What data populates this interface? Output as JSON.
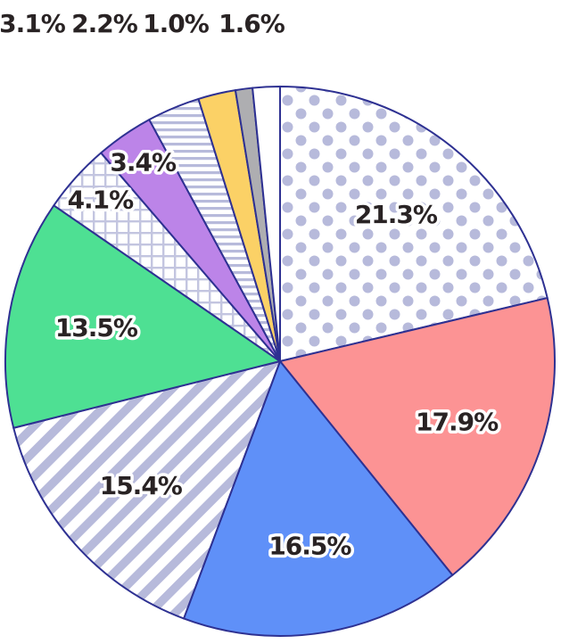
{
  "background_color": "#ffffff",
  "chart_data": {
    "type": "pie",
    "title": "",
    "direction": "clockwise",
    "start_angle_deg": 0,
    "legend_position": "none",
    "outline_color": "#2e3192",
    "label_text_color": "#292324",
    "label_halo_color": "#ffffff",
    "slices": [
      {
        "label": "21.3%",
        "value": 21.3,
        "label_placement": "inside",
        "fill": {
          "kind": "pattern",
          "pattern": "polka-dots",
          "bg": "#ffffff",
          "fg": "#b7badb"
        }
      },
      {
        "label": "17.9%",
        "value": 17.9,
        "label_placement": "inside",
        "fill": {
          "kind": "solid",
          "color": "#fc9394"
        }
      },
      {
        "label": "16.5%",
        "value": 16.5,
        "label_placement": "inside",
        "fill": {
          "kind": "solid",
          "color": "#5f90f8"
        }
      },
      {
        "label": "15.4%",
        "value": 15.4,
        "label_placement": "inside",
        "fill": {
          "kind": "pattern",
          "pattern": "diagonal-stripes",
          "bg": "#ffffff",
          "fg": "#b7badb"
        }
      },
      {
        "label": "13.5%",
        "value": 13.5,
        "label_placement": "inside",
        "fill": {
          "kind": "solid",
          "color": "#4ee093"
        }
      },
      {
        "label": "4.1%",
        "value": 4.1,
        "label_placement": "inside-rim",
        "fill": {
          "kind": "pattern",
          "pattern": "grid",
          "bg": "#ffffff",
          "fg": "#c3c5e0"
        }
      },
      {
        "label": "3.4%",
        "value": 3.4,
        "label_placement": "inside-rim",
        "fill": {
          "kind": "solid",
          "color": "#bc84e8"
        }
      },
      {
        "label": "3.1%",
        "value": 3.1,
        "label_placement": "top-row",
        "fill": {
          "kind": "pattern",
          "pattern": "horizontal-stripes",
          "bg": "#ffffff",
          "fg": "#b7badb"
        }
      },
      {
        "label": "2.2%",
        "value": 2.2,
        "label_placement": "top-row",
        "fill": {
          "kind": "solid",
          "color": "#fbd166"
        }
      },
      {
        "label": "1.0%",
        "value": 1.0,
        "label_placement": "top-row",
        "fill": {
          "kind": "solid",
          "color": "#aeaeb1"
        }
      },
      {
        "label": "1.6%",
        "value": 1.6,
        "label_placement": "top-row",
        "fill": {
          "kind": "solid",
          "color": "#ffffff"
        }
      }
    ]
  }
}
